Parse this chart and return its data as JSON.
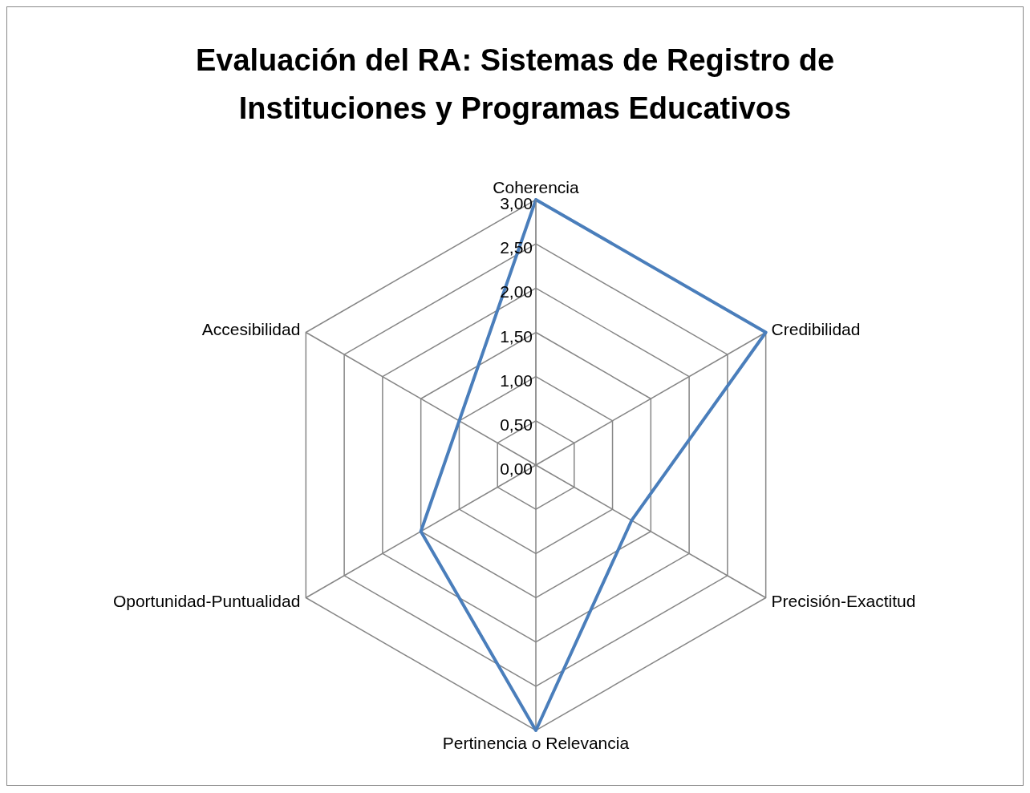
{
  "chart_data": {
    "type": "radar",
    "title": "Evaluación del RA: Sistemas de Registro de Instituciones y Programas Educativos",
    "categories": [
      "Coherencia",
      "Credibilidad",
      "Precisión-Exactitud",
      "Pertinencia o Relevancia",
      "Oportunidad-Puntualidad",
      "Accesibilidad"
    ],
    "series": [
      {
        "color": "#4a7ebb",
        "values": [
          3,
          3,
          1.25,
          3,
          1.5,
          1
        ]
      }
    ],
    "ylim": [
      0,
      3
    ],
    "yticks": [
      {
        "value": 0,
        "label": "0,00"
      },
      {
        "value": 0.5,
        "label": "0,50"
      },
      {
        "value": 1,
        "label": "1,00"
      },
      {
        "value": 1.5,
        "label": "1,50"
      },
      {
        "value": 2,
        "label": "2,00"
      },
      {
        "value": 2.5,
        "label": "2,50"
      },
      {
        "value": 3,
        "label": "3,00"
      }
    ],
    "grid": true
  }
}
